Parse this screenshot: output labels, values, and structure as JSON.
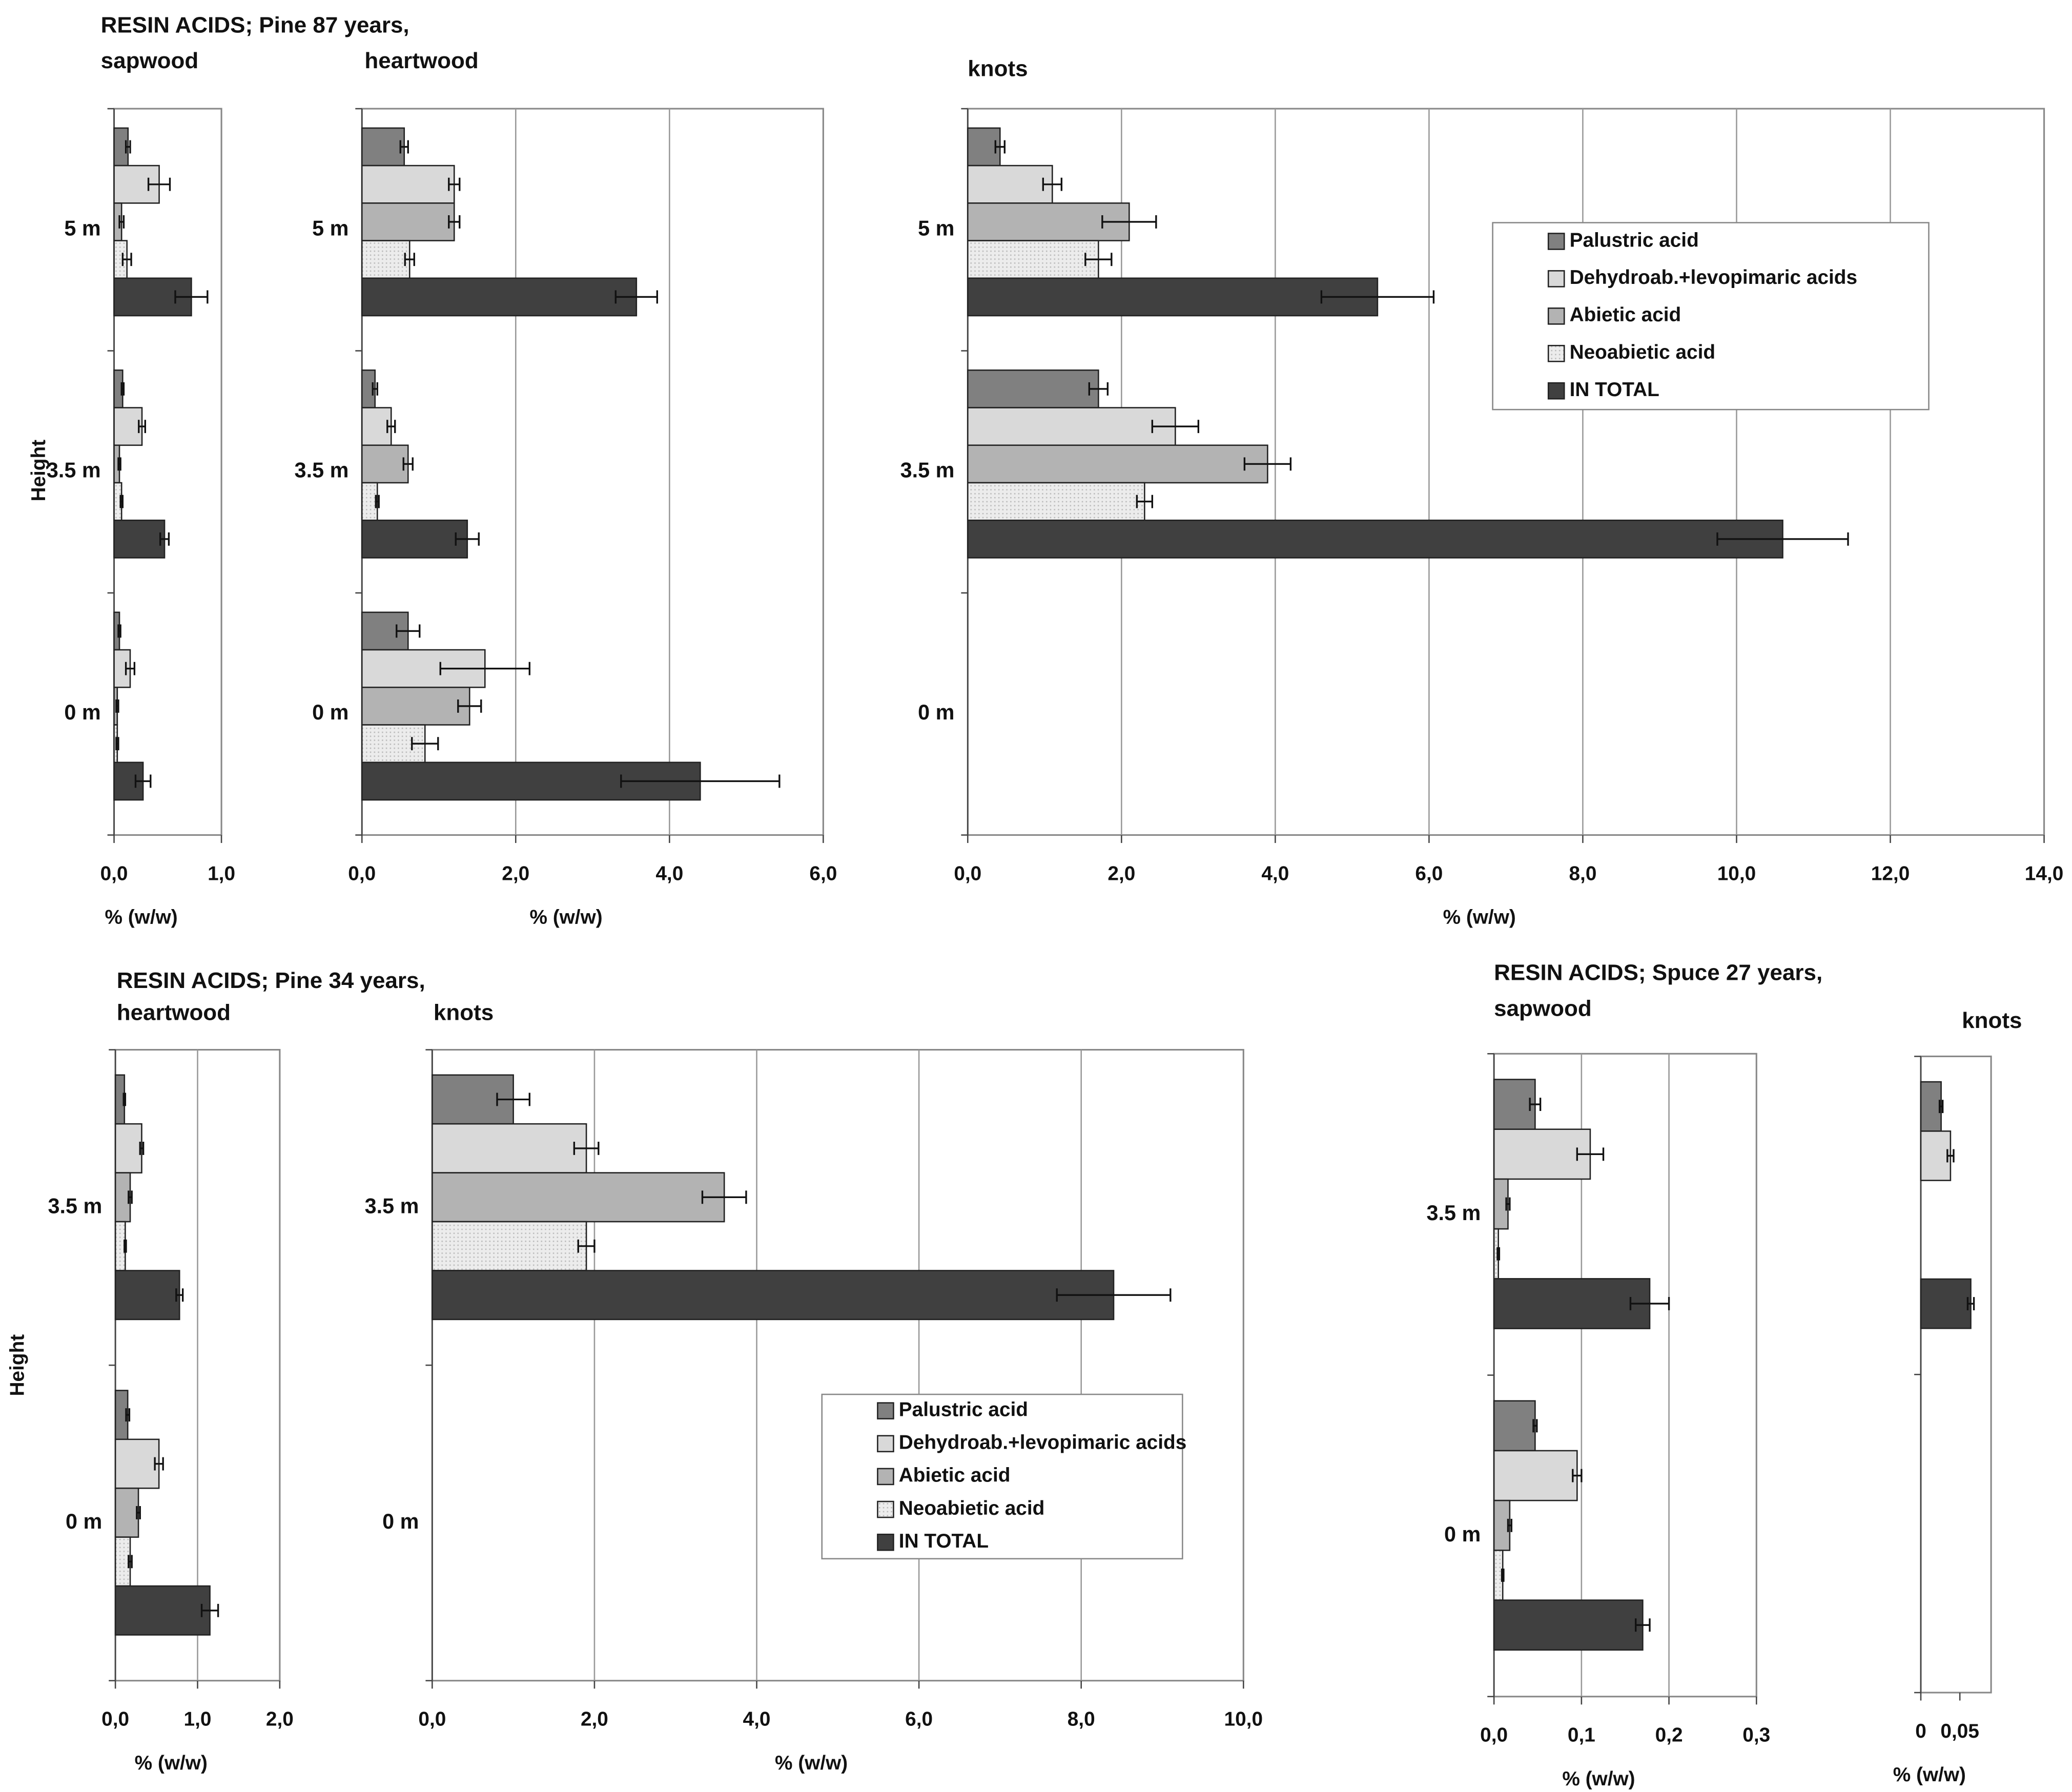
{
  "chart_data": [
    {
      "type": "bar",
      "title": "RESIN ACIDS; Pine 87 years,",
      "subtitle": "sapwood",
      "ylabel": "Height",
      "xlabel": "% (w/w)",
      "categories": [
        "5 m",
        "3.5 m",
        "0 m"
      ],
      "xlim": [
        0,
        1.0
      ],
      "xticks": [
        {
          "value": 0,
          "label": "0,0"
        },
        {
          "value": 1.0,
          "label": "1,0"
        }
      ],
      "grid": true,
      "series": [
        {
          "name": "Palustric acid",
          "color": "#808080",
          "values": [
            0.13,
            0.08,
            0.05
          ],
          "errors": [
            0.02,
            0.01,
            0.01
          ]
        },
        {
          "name": "Dehydroab.+levopimaric acids",
          "color": "#d9d9d9",
          "values": [
            0.42,
            0.26,
            0.15
          ],
          "errors": [
            0.1,
            0.03,
            0.04
          ]
        },
        {
          "name": "Abietic acid",
          "color": "#b3b3b3",
          "values": [
            0.07,
            0.05,
            0.03
          ],
          "errors": [
            0.02,
            0.01,
            0.01
          ]
        },
        {
          "name": "Neoabietic acid",
          "color": "#ececec",
          "values": [
            0.12,
            0.07,
            0.03
          ],
          "errors": [
            0.04,
            0.01,
            0.01
          ]
        },
        {
          "name": "IN TOTAL",
          "color": "#404040",
          "values": [
            0.72,
            0.47,
            0.27
          ],
          "errors": [
            0.15,
            0.04,
            0.07
          ]
        }
      ]
    },
    {
      "type": "bar",
      "subtitle": "heartwood",
      "xlabel": "% (w/w)",
      "categories": [
        "5 m",
        "3.5 m",
        "0 m"
      ],
      "xlim": [
        0,
        6.0
      ],
      "xticks": [
        {
          "value": 0,
          "label": "0,0"
        },
        {
          "value": 2.0,
          "label": "2,0"
        },
        {
          "value": 4.0,
          "label": "4,0"
        },
        {
          "value": 6.0,
          "label": "6,0"
        }
      ],
      "grid": true,
      "series": [
        {
          "name": "Palustric acid",
          "color": "#808080",
          "values": [
            0.55,
            0.17,
            0.6
          ],
          "errors": [
            0.05,
            0.03,
            0.15
          ]
        },
        {
          "name": "Dehydroab.+levopimaric acids",
          "color": "#d9d9d9",
          "values": [
            1.2,
            0.38,
            1.6
          ],
          "errors": [
            0.07,
            0.05,
            0.58
          ]
        },
        {
          "name": "Abietic acid",
          "color": "#b3b3b3",
          "values": [
            1.2,
            0.6,
            1.4
          ],
          "errors": [
            0.07,
            0.06,
            0.15
          ]
        },
        {
          "name": "Neoabietic acid",
          "color": "#ececec",
          "values": [
            0.62,
            0.2,
            0.82
          ],
          "errors": [
            0.06,
            0.02,
            0.17
          ]
        },
        {
          "name": "IN TOTAL",
          "color": "#404040",
          "values": [
            3.57,
            1.37,
            4.4
          ],
          "errors": [
            0.27,
            0.15,
            1.03
          ]
        }
      ]
    },
    {
      "type": "bar",
      "subtitle": "knots",
      "xlabel": "% (w/w)",
      "legend": true,
      "categories": [
        "5 m",
        "3.5 m",
        "0 m"
      ],
      "xlim": [
        0,
        14.0
      ],
      "xticks": [
        {
          "value": 0,
          "label": "0,0"
        },
        {
          "value": 2.0,
          "label": "2,0"
        },
        {
          "value": 4.0,
          "label": "4,0"
        },
        {
          "value": 6.0,
          "label": "6,0"
        },
        {
          "value": 8.0,
          "label": "8,0"
        },
        {
          "value": 10.0,
          "label": "10,0"
        },
        {
          "value": 12.0,
          "label": "12,0"
        },
        {
          "value": 14.0,
          "label": "14,0"
        }
      ],
      "grid": true,
      "series": [
        {
          "name": "Palustric acid",
          "color": "#808080",
          "values": [
            0.42,
            1.7,
            null
          ],
          "errors": [
            0.06,
            0.12,
            null
          ]
        },
        {
          "name": "Dehydroab.+levopimaric acids",
          "color": "#d9d9d9",
          "values": [
            1.1,
            2.7,
            null
          ],
          "errors": [
            0.12,
            0.3,
            null
          ]
        },
        {
          "name": "Abietic acid",
          "color": "#b3b3b3",
          "values": [
            2.1,
            3.9,
            null
          ],
          "errors": [
            0.35,
            0.3,
            null
          ]
        },
        {
          "name": "Neoabietic acid",
          "color": "#ececec",
          "values": [
            1.7,
            2.3,
            null
          ],
          "errors": [
            0.17,
            0.1,
            null
          ]
        },
        {
          "name": "IN TOTAL",
          "color": "#404040",
          "values": [
            5.33,
            10.6,
            null
          ],
          "errors": [
            0.73,
            0.85,
            null
          ]
        }
      ]
    },
    {
      "type": "bar",
      "title": "RESIN ACIDS; Pine 34 years,",
      "subtitle": "heartwood",
      "ylabel": "Height",
      "xlabel": "% (w/w)",
      "categories": [
        "3.5 m",
        "0 m"
      ],
      "xlim": [
        0,
        2.0
      ],
      "xticks": [
        {
          "value": 0,
          "label": "0,0"
        },
        {
          "value": 1.0,
          "label": "1,0"
        },
        {
          "value": 2.0,
          "label": "2,0"
        }
      ],
      "grid": true,
      "series": [
        {
          "name": "Palustric acid",
          "color": "#808080",
          "values": [
            0.11,
            0.15
          ],
          "errors": [
            0.01,
            0.02
          ]
        },
        {
          "name": "Dehydroab.+levopimaric acids",
          "color": "#d9d9d9",
          "values": [
            0.32,
            0.53
          ],
          "errors": [
            0.02,
            0.05
          ]
        },
        {
          "name": "Abietic acid",
          "color": "#b3b3b3",
          "values": [
            0.18,
            0.28
          ],
          "errors": [
            0.02,
            0.02
          ]
        },
        {
          "name": "Neoabietic acid",
          "color": "#ececec",
          "values": [
            0.12,
            0.18
          ],
          "errors": [
            0.01,
            0.02
          ]
        },
        {
          "name": "IN TOTAL",
          "color": "#404040",
          "values": [
            0.78,
            1.15
          ],
          "errors": [
            0.04,
            0.1
          ]
        }
      ]
    },
    {
      "type": "bar",
      "subtitle": "knots",
      "xlabel": "% (w/w)",
      "legend": true,
      "categories": [
        "3.5 m",
        "0 m"
      ],
      "xlim": [
        0,
        10.0
      ],
      "xticks": [
        {
          "value": 0,
          "label": "0,0"
        },
        {
          "value": 2.0,
          "label": "2,0"
        },
        {
          "value": 4.0,
          "label": "4,0"
        },
        {
          "value": 6.0,
          "label": "6,0"
        },
        {
          "value": 8.0,
          "label": "8,0"
        },
        {
          "value": 10.0,
          "label": "10,0"
        }
      ],
      "grid": true,
      "series": [
        {
          "name": "Palustric acid",
          "color": "#808080",
          "values": [
            1.0,
            null
          ],
          "errors": [
            0.2,
            null
          ]
        },
        {
          "name": "Dehydroab.+levopimaric acids",
          "color": "#d9d9d9",
          "values": [
            1.9,
            null
          ],
          "errors": [
            0.15,
            null
          ]
        },
        {
          "name": "Abietic acid",
          "color": "#b3b3b3",
          "values": [
            3.6,
            null
          ],
          "errors": [
            0.27,
            null
          ]
        },
        {
          "name": "Neoabietic acid",
          "color": "#ececec",
          "values": [
            1.9,
            null
          ],
          "errors": [
            0.1,
            null
          ]
        },
        {
          "name": "IN TOTAL",
          "color": "#404040",
          "values": [
            8.4,
            null
          ],
          "errors": [
            0.7,
            null
          ]
        }
      ]
    },
    {
      "type": "bar",
      "title": "RESIN ACIDS; Spuce 27 years,",
      "subtitle": "sapwood",
      "xlabel": "% (w/w)",
      "categories": [
        "3.5 m",
        "0 m"
      ],
      "xlim": [
        0,
        0.3
      ],
      "xticks": [
        {
          "value": 0,
          "label": "0,0"
        },
        {
          "value": 0.1,
          "label": "0,1"
        },
        {
          "value": 0.2,
          "label": "0,2"
        },
        {
          "value": 0.3,
          "label": "0,3"
        }
      ],
      "grid": true,
      "series": [
        {
          "name": "Palustric acid",
          "color": "#808080",
          "values": [
            0.047,
            0.047
          ],
          "errors": [
            0.006,
            0.002
          ]
        },
        {
          "name": "Dehydroab.+levopimaric acids",
          "color": "#d9d9d9",
          "values": [
            0.11,
            0.095
          ],
          "errors": [
            0.015,
            0.005
          ]
        },
        {
          "name": "Abietic acid",
          "color": "#b3b3b3",
          "values": [
            0.016,
            0.018
          ],
          "errors": [
            0.002,
            0.002
          ]
        },
        {
          "name": "Neoabietic acid",
          "color": "#ececec",
          "values": [
            0.005,
            0.01
          ],
          "errors": [
            0.001,
            0.001
          ]
        },
        {
          "name": "IN TOTAL",
          "color": "#404040",
          "values": [
            0.178,
            0.17
          ],
          "errors": [
            0.022,
            0.008
          ]
        }
      ]
    },
    {
      "type": "bar",
      "subtitle": "knots",
      "xlabel": "% (w/w)",
      "categories": [
        null,
        null
      ],
      "xlim": [
        0,
        0.09
      ],
      "xticks": [
        0,
        {
          "value": 0.05,
          "label": "0,05"
        }
      ],
      "grid": false,
      "series": [
        {
          "name": "Palustric acid",
          "color": "#808080",
          "values": [
            0.026,
            null
          ],
          "errors": [
            0.002,
            null
          ]
        },
        {
          "name": "Dehydroab.+levopimaric acids",
          "color": "#d9d9d9",
          "values": [
            0.038,
            null
          ],
          "errors": [
            0.004,
            null
          ]
        },
        {
          "name": "Abietic acid",
          "color": "#b3b3b3",
          "values": [
            null,
            null
          ],
          "errors": [
            null,
            null
          ]
        },
        {
          "name": "Neoabietic acid",
          "color": "#ececec",
          "values": [
            null,
            null
          ],
          "errors": [
            null,
            null
          ]
        },
        {
          "name": "IN TOTAL",
          "color": "#404040",
          "values": [
            0.064,
            null
          ],
          "errors": [
            0.004,
            null
          ]
        }
      ]
    }
  ]
}
